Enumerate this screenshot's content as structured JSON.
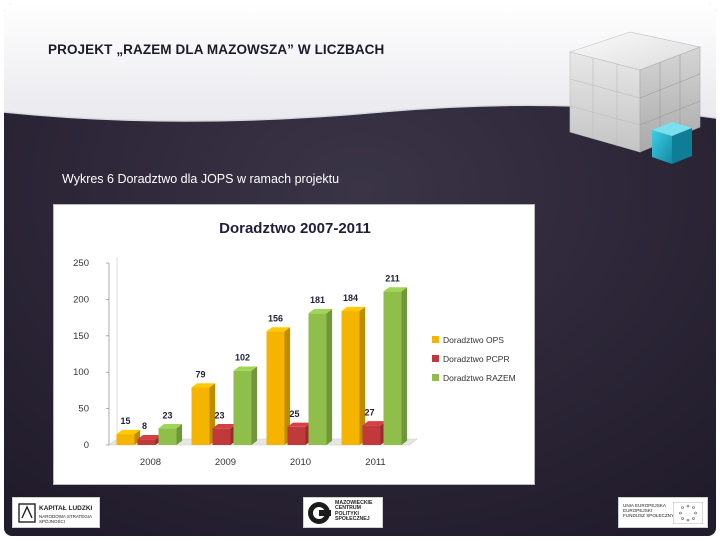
{
  "slide": {
    "title": "PROJEKT „RAZEM DLA MAZOWSZA” W LICZBACH",
    "caption": "Wykres 6 Doradztwo dla JOPS w ramach projektu"
  },
  "logos": {
    "left": "KAPITAŁ LUDZKI",
    "left_sub": "NARODOWA STRATEGIA SPÓJNOŚCI",
    "center": "MAZOWIECKIE CENTRUM POLITYKI SPOŁECZNEJ",
    "center_lines": [
      "MAZOWIECKIE",
      "CENTRUM",
      "POLITYKI",
      "SPOŁECZNEJ"
    ],
    "right": "UNIA EUROPEJSKA EUROPEJSKI FUNDUSZ SPOŁECZNY",
    "right_lines": [
      "UNIA EUROPEJSKA",
      "EUROPEJSKI",
      "FUNDUSZ SPOŁECZNY"
    ]
  },
  "colors": {
    "background_dark": "#2b2536",
    "ops": "#f5b400",
    "pcpr": "#c0393b",
    "razem": "#8fbf4a",
    "cube_accent": "#1fb3cf"
  },
  "chart_data": {
    "type": "bar",
    "title": "Doradztwo 2007-2011",
    "categories": [
      "2008",
      "2009",
      "2010",
      "2011"
    ],
    "series": [
      {
        "name": "Doradztwo OPS",
        "values": [
          15,
          79,
          156,
          184
        ],
        "color": "#f5b400"
      },
      {
        "name": "Doradztwo PCPR",
        "values": [
          8,
          23,
          25,
          27
        ],
        "color": "#c0393b"
      },
      {
        "name": "Doradztwo RAZEM",
        "values": [
          23,
          102,
          181,
          211
        ],
        "color": "#8fbf4a"
      }
    ],
    "ylim": [
      0,
      250
    ],
    "yticks": [
      "0",
      "50",
      "100",
      "150",
      "200",
      "250"
    ],
    "grid": false,
    "legend": "right",
    "style": "3d"
  }
}
